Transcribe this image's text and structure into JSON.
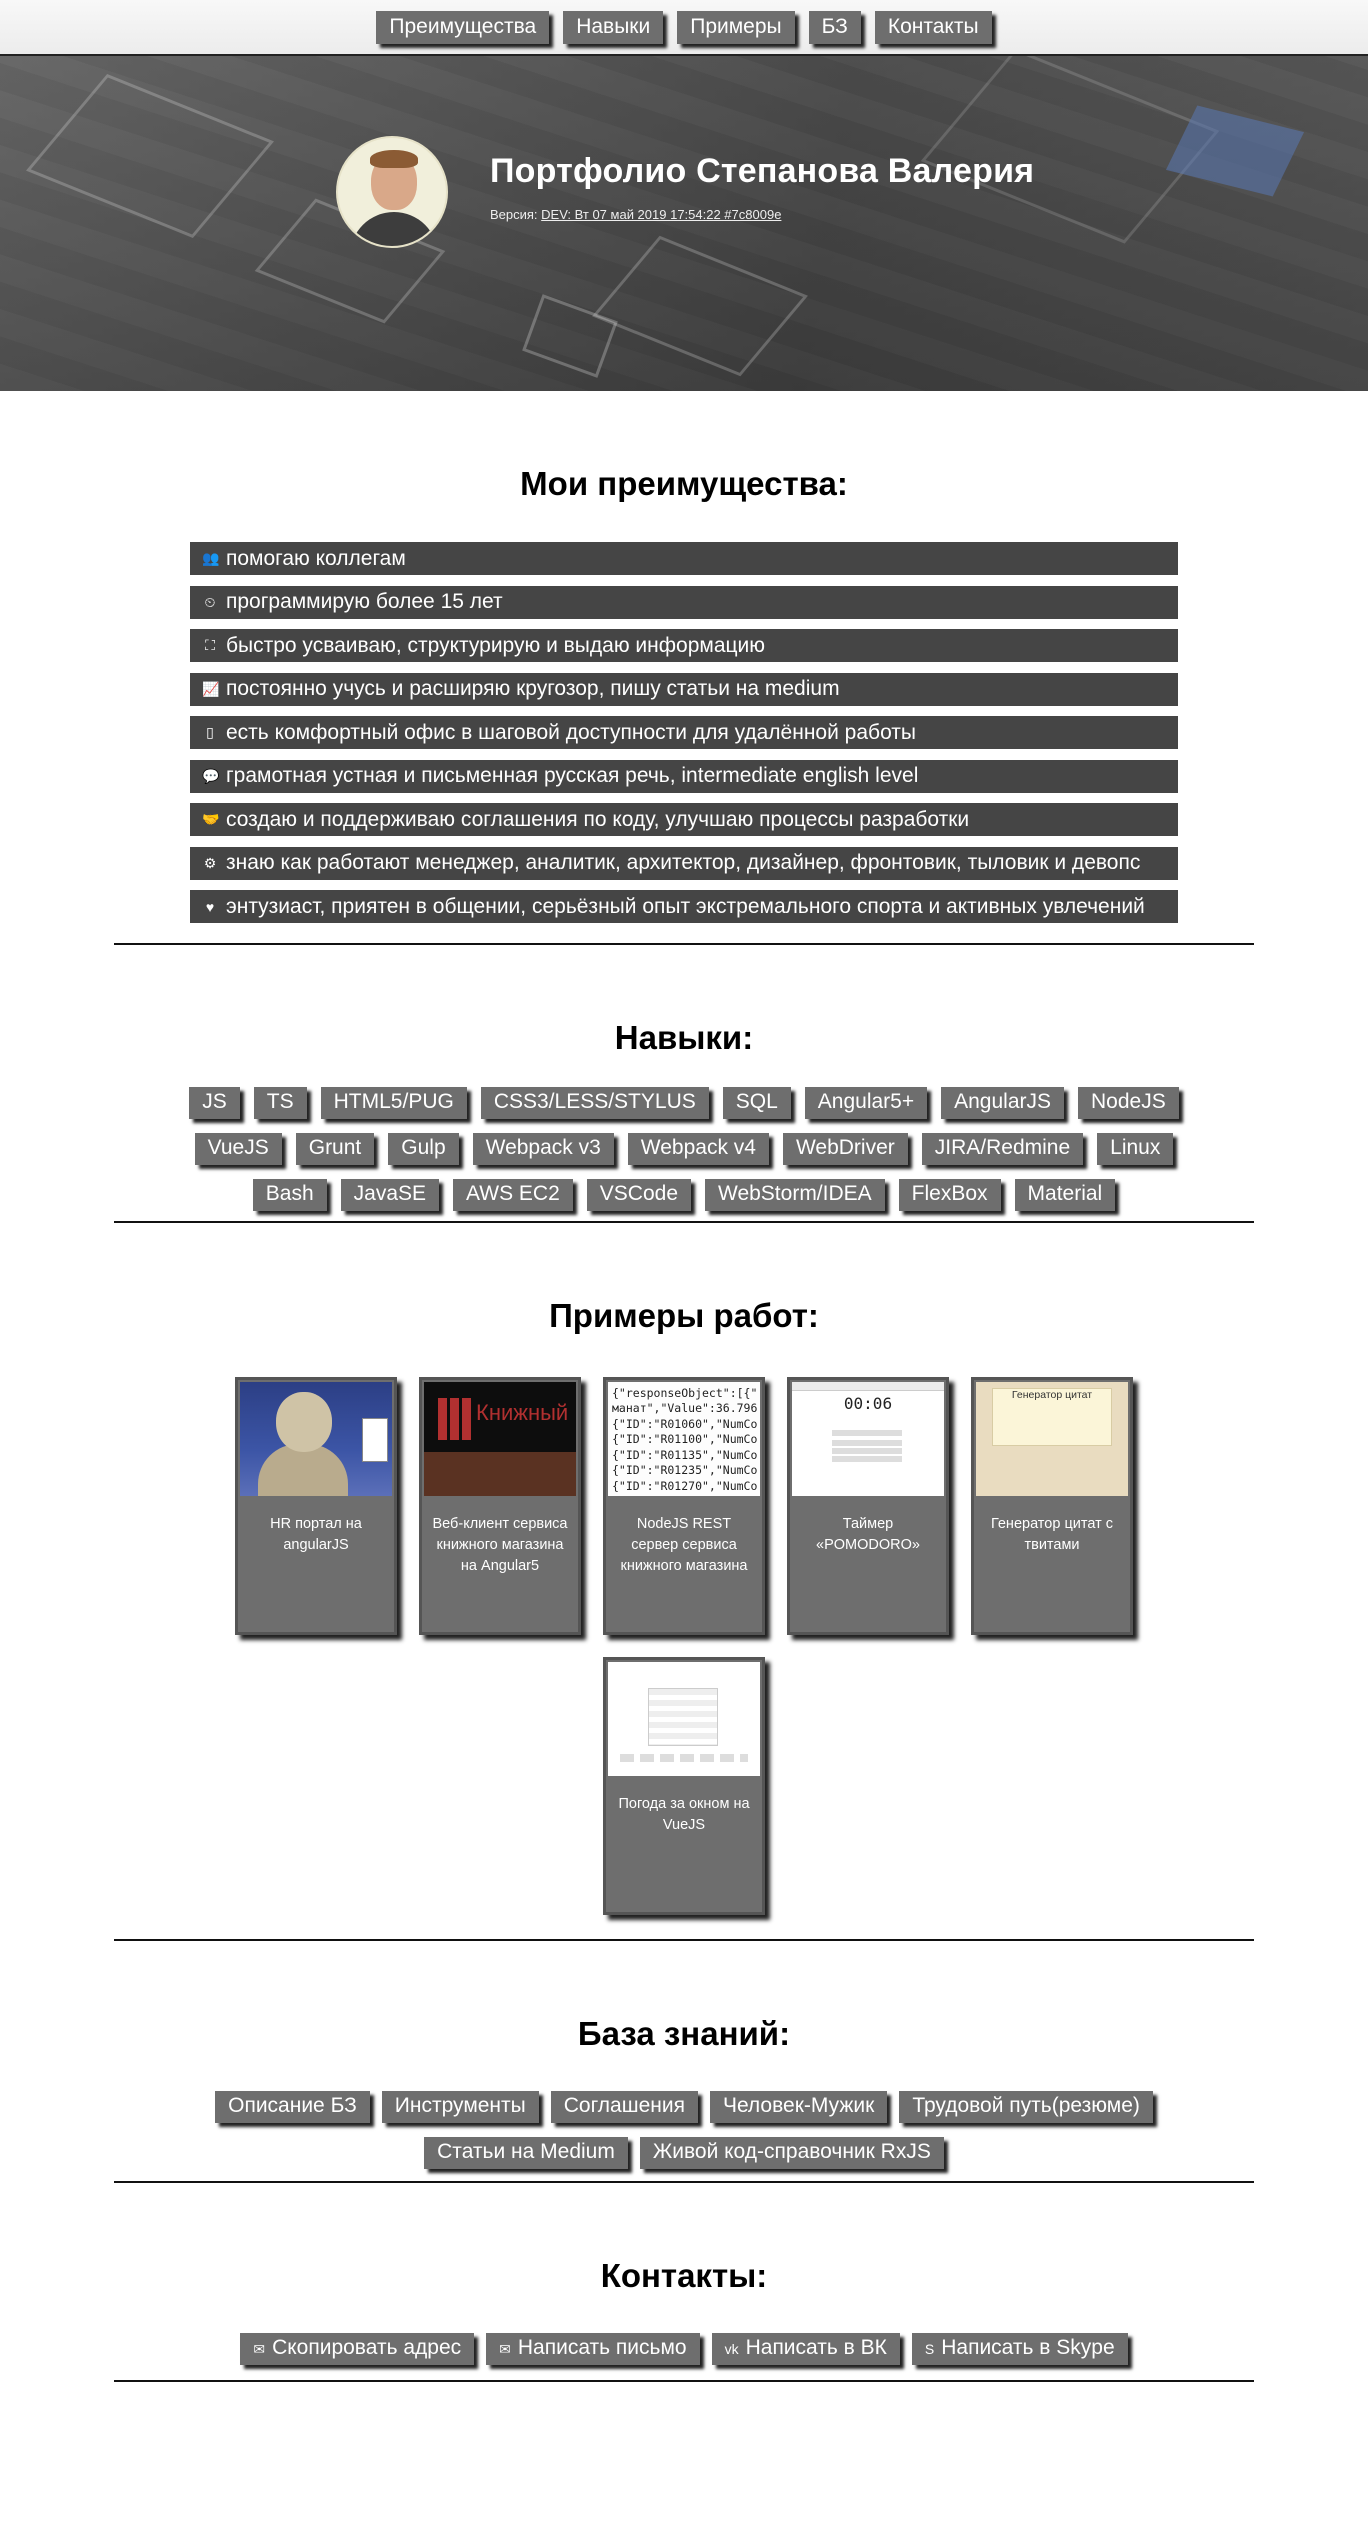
{
  "nav": [
    "Преимущества",
    "Навыки",
    "Примеры",
    "БЗ",
    "Контакты"
  ],
  "hero": {
    "title": "Портфолио Степанова Валерия",
    "version_label": "Версия:",
    "version_value": "DEV: Вт 07 май 2019 17:54:22 #7c8009e"
  },
  "advantages": {
    "title": "Мои преимущества:",
    "items": [
      {
        "icon": "users-icon",
        "glyph": "👥",
        "text": "помогаю коллегам"
      },
      {
        "icon": "clock-icon",
        "glyph": "⏲",
        "text": "программирую более 15 лет"
      },
      {
        "icon": "sitemap-icon",
        "glyph": "⛶",
        "text": "быстро усваиваю, структурирую и выдаю информацию"
      },
      {
        "icon": "line-chart-icon",
        "glyph": "📈",
        "text": "постоянно учусь и расширяю кругозор, пишу статьи на medium"
      },
      {
        "icon": "building-icon",
        "glyph": "▯",
        "text": "есть комфортный офис в шаговой доступности для удалённой работы"
      },
      {
        "icon": "comment-icon",
        "glyph": "💬",
        "text": "грамотная устная и письменная русская речь, intermediate english level"
      },
      {
        "icon": "handshake-icon",
        "glyph": "🤝",
        "text": "создаю и поддерживаю соглашения по коду, улучшаю процессы разработки"
      },
      {
        "icon": "gears-icon",
        "glyph": "⚙",
        "text": "знаю как работают менеджер, аналитик, архитектор, дизайнер, фронтовик, тыловик и девопс"
      },
      {
        "icon": "heart-icon",
        "glyph": "♥",
        "text": "энтузиаст, приятен в общении, серьёзный опыт экстремального спорта и активных увлечений"
      }
    ]
  },
  "skills": {
    "title": "Навыки:",
    "items": [
      "JS",
      "TS",
      "HTML5/PUG",
      "CSS3/LESS/STYLUS",
      "SQL",
      "Angular5+",
      "AngularJS",
      "NodeJS",
      "VueJS",
      "Grunt",
      "Gulp",
      "Webpack v3",
      "Webpack v4",
      "WebDriver",
      "JIRA/Redmine",
      "Linux",
      "Bash",
      "JavaSE",
      "AWS EC2",
      "VSCode",
      "WebStorm/IDEA",
      "FlexBox",
      "Material"
    ]
  },
  "works": {
    "title": "Примеры работ:",
    "items": [
      {
        "thumb": "statue",
        "caption": "HR портал на angularJS"
      },
      {
        "thumb": "book",
        "caption": "Веб-клиент сервиса книжного магазина на Angular5",
        "thumb_text": "Книжный"
      },
      {
        "thumb": "json",
        "caption": "NodeJS REST сервер сервиса книжного магазина",
        "thumb_text": "{\"responseObject\":[{\"\nманат\",\"Value\":36.796\n{\"ID\":\"R01060\",\"NumCo\n{\"ID\":\"R01100\",\"NumCo\n{\"ID\":\"R01135\",\"NumCo\n{\"ID\":\"R01235\",\"NumCo\n{\"ID\":\"R01270\",\"NumCo"
      },
      {
        "thumb": "timer",
        "caption": "Таймер «POMODORO»",
        "thumb_text": "00:06"
      },
      {
        "thumb": "quote",
        "caption": "Генератор цитат с твитами",
        "thumb_text": "Генератор цитат"
      },
      {
        "thumb": "weather",
        "caption": "Погода за окном на VueJS"
      }
    ]
  },
  "kb": {
    "title": "База знаний:",
    "items": [
      "Описание БЗ",
      "Инструменты",
      "Соглашения",
      "Человек-Мужик",
      "Трудовой путь(резюме)",
      "Статьи на Medium",
      "Живой код-справочник RxJS"
    ]
  },
  "contacts": {
    "title": "Контакты:",
    "items": [
      {
        "icon": "envelope-icon",
        "glyph": "✉",
        "text": "Скопировать адрес"
      },
      {
        "icon": "envelope-o-icon",
        "glyph": "✉",
        "text": "Написать письмо"
      },
      {
        "icon": "vk-icon",
        "glyph": "vk",
        "text": "Написать в ВК"
      },
      {
        "icon": "skype-icon",
        "glyph": "S",
        "text": "Написать в Skype"
      }
    ]
  }
}
